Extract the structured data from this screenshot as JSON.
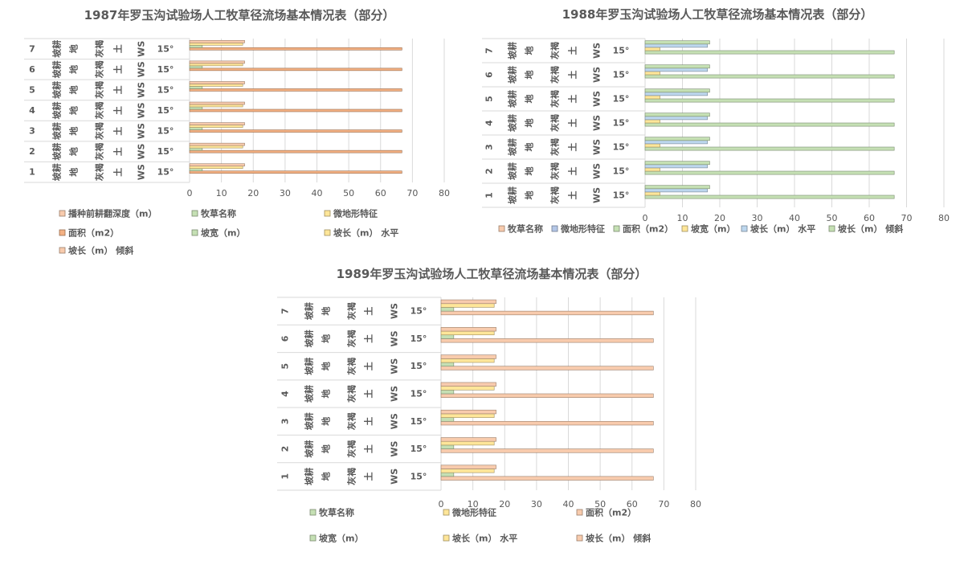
{
  "chart_data": [
    {
      "type": "bar",
      "title": "1987年罗玉沟试验场人工牧草径流场基本情况表（部分）",
      "xlim": [
        0,
        80
      ],
      "xticks": [
        0,
        10,
        20,
        30,
        40,
        50,
        60,
        70,
        80
      ],
      "grid": true,
      "legend_position": "bottom",
      "table_columns": [
        {
          "values": [
            "1",
            "2",
            "3",
            "4",
            "5",
            "6",
            "7"
          ]
        },
        {
          "values": [
            "坡耕",
            "坡耕",
            "坡耕",
            "坡耕",
            "坡耕",
            "坡耕",
            "坡耕"
          ]
        },
        {
          "values": [
            "地",
            "地",
            "地",
            "地",
            "地",
            "地",
            "地"
          ]
        },
        {
          "values": [
            "灰褐",
            "灰褐",
            "灰褐",
            "灰褐",
            "灰褐",
            "灰褐",
            "灰褐"
          ]
        },
        {
          "values": [
            "土",
            "土",
            "土",
            "土",
            "土",
            "土",
            "土"
          ]
        },
        {
          "values": [
            "WS",
            "WS",
            "WS",
            "WS",
            "WS",
            "WS",
            "WS"
          ]
        },
        {
          "values": [
            "15°",
            "15°",
            "15°",
            "15°",
            "15°",
            "15°",
            "15°"
          ]
        }
      ],
      "series": [
        {
          "name": "播种前耕翻深度（m）",
          "color": "#f8cbad",
          "values": [
            0,
            0,
            0,
            0,
            0,
            0,
            0
          ]
        },
        {
          "name": "牧草名称",
          "color": "#c5e0b4",
          "values": [
            0,
            0,
            0,
            0,
            0,
            0,
            0
          ]
        },
        {
          "name": "微地形特征",
          "color": "#ffe699",
          "values": [
            0,
            0,
            0,
            0,
            0,
            0,
            0
          ]
        },
        {
          "name": "面积（m2）",
          "color": "#f4b183",
          "values": [
            66.7,
            66.7,
            66.7,
            66.7,
            66.7,
            66.7,
            66.7
          ]
        },
        {
          "name": "坡宽（m）",
          "color": "#c5e0b4",
          "values": [
            4,
            4,
            4,
            4,
            4,
            4,
            4
          ]
        },
        {
          "name": "坡长（m）  水平",
          "color": "#ffe699",
          "values": [
            16.7,
            16.7,
            16.7,
            16.7,
            16.7,
            16.7,
            16.7
          ]
        },
        {
          "name": "坡长（m）  倾斜",
          "color": "#f8cbad",
          "values": [
            17.3,
            17.3,
            17.3,
            17.3,
            17.3,
            17.3,
            17.3
          ]
        }
      ]
    },
    {
      "type": "bar",
      "title": "1988年罗玉沟试验场人工牧草径流场基本情况表（部分）",
      "xlim": [
        0,
        80
      ],
      "xticks": [
        0,
        10,
        20,
        30,
        40,
        50,
        60,
        70,
        80
      ],
      "grid": true,
      "legend_position": "bottom",
      "table_columns": [
        {
          "values": [
            "1",
            "2",
            "3",
            "4",
            "5",
            "6",
            "7"
          ]
        },
        {
          "values": [
            "坡耕",
            "坡耕",
            "坡耕",
            "坡耕",
            "坡耕",
            "坡耕",
            "坡耕"
          ]
        },
        {
          "values": [
            "地",
            "地",
            "地",
            "地",
            "地",
            "地",
            "地"
          ]
        },
        {
          "values": [
            "灰褐",
            "灰褐",
            "灰褐",
            "灰褐",
            "灰褐",
            "灰褐",
            "灰褐"
          ]
        },
        {
          "values": [
            "土",
            "土",
            "土",
            "土",
            "土",
            "土",
            "土"
          ]
        },
        {
          "values": [
            "WS",
            "WS",
            "WS",
            "WS",
            "WS",
            "WS",
            "WS"
          ]
        },
        {
          "values": [
            "15°",
            "15°",
            "15°",
            "15°",
            "15°",
            "15°",
            "15°"
          ]
        }
      ],
      "series": [
        {
          "name": "牧草名称",
          "color": "#f8cbad",
          "values": [
            0,
            0,
            0,
            0,
            0,
            0,
            0
          ]
        },
        {
          "name": "微地形特征",
          "color": "#b4c7e7",
          "values": [
            0,
            0,
            0,
            0,
            0,
            0,
            0
          ]
        },
        {
          "name": "面积（m2）",
          "color": "#c5e0b4",
          "values": [
            66.7,
            66.7,
            66.7,
            66.7,
            66.7,
            66.7,
            66.7
          ]
        },
        {
          "name": "坡宽（m）",
          "color": "#ffe699",
          "values": [
            4,
            4,
            4,
            4,
            4,
            4,
            4
          ]
        },
        {
          "name": "坡长（m）  水平",
          "color": "#bdd7ee",
          "values": [
            16.7,
            16.7,
            16.7,
            16.7,
            16.7,
            16.7,
            16.7
          ]
        },
        {
          "name": "坡长（m）  倾斜",
          "color": "#c5e0b4",
          "values": [
            17.3,
            17.3,
            17.3,
            17.3,
            17.3,
            17.3,
            17.3
          ]
        }
      ]
    },
    {
      "type": "bar",
      "title": "1989年罗玉沟试验场人工牧草径流场基本情况表（部分）",
      "xlim": [
        0,
        80
      ],
      "xticks": [
        0,
        10,
        20,
        30,
        40,
        50,
        60,
        70,
        80
      ],
      "grid": true,
      "legend_position": "bottom",
      "table_columns": [
        {
          "values": [
            "1",
            "2",
            "3",
            "4",
            "5",
            "6",
            "7"
          ]
        },
        {
          "values": [
            "坡耕",
            "坡耕",
            "坡耕",
            "坡耕",
            "坡耕",
            "坡耕",
            "坡耕"
          ]
        },
        {
          "values": [
            "地",
            "地",
            "地",
            "地",
            "地",
            "地",
            "地"
          ]
        },
        {
          "values": [
            "灰褐",
            "灰褐",
            "灰褐",
            "灰褐",
            "灰褐",
            "灰褐",
            "灰褐"
          ]
        },
        {
          "values": [
            "土",
            "土",
            "土",
            "土",
            "土",
            "土",
            "土"
          ]
        },
        {
          "values": [
            "WS",
            "WS",
            "WS",
            "WS",
            "WS",
            "WS",
            "WS"
          ]
        },
        {
          "values": [
            "15°",
            "15°",
            "15°",
            "15°",
            "15°",
            "15°",
            "15°"
          ]
        }
      ],
      "series": [
        {
          "name": "牧草名称",
          "color": "#c5e0b4",
          "values": [
            0,
            0,
            0,
            0,
            0,
            0,
            0
          ]
        },
        {
          "name": "微地形特征",
          "color": "#ffe699",
          "values": [
            0,
            0,
            0,
            0,
            0,
            0,
            0
          ]
        },
        {
          "name": "面积（m2）",
          "color": "#f8cbad",
          "values": [
            66.7,
            66.7,
            66.7,
            66.7,
            66.7,
            66.7,
            66.7
          ]
        },
        {
          "name": "坡宽（m）",
          "color": "#c5e0b4",
          "values": [
            4,
            4,
            4,
            4,
            4,
            4,
            4
          ]
        },
        {
          "name": "坡长（m）  水平",
          "color": "#ffe699",
          "values": [
            16.7,
            16.7,
            16.7,
            16.7,
            16.7,
            16.7,
            16.7
          ]
        },
        {
          "name": "坡长（m）  倾斜",
          "color": "#f8cbad",
          "values": [
            17.3,
            17.3,
            17.3,
            17.3,
            17.3,
            17.3,
            17.3
          ]
        }
      ]
    }
  ]
}
